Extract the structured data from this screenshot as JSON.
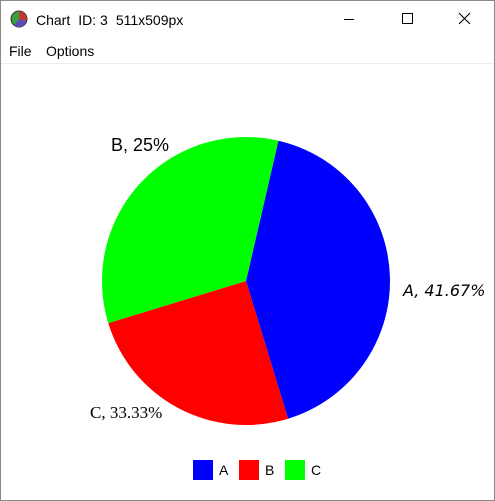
{
  "window": {
    "title": "Chart",
    "id_label": "ID: 3",
    "size_label": "511x509px",
    "icon": "pie-chart-icon",
    "controls": [
      "minimize-icon",
      "maximize-icon",
      "close-icon"
    ]
  },
  "menu": {
    "file": "File",
    "options": "Options"
  },
  "chart_data": {
    "type": "pie",
    "title": "",
    "slices": [
      {
        "name": "A",
        "value": 41.67,
        "label": "A, 41.67%",
        "color": "#0000ff"
      },
      {
        "name": "B",
        "value": 25,
        "label": "B, 25%",
        "color": "#ff0000"
      },
      {
        "name": "C",
        "value": 33.33,
        "label": "C, 33.33%",
        "color": "#00ff00"
      }
    ],
    "legend": {
      "placement": "bottom",
      "entries": [
        "A",
        "B",
        "C"
      ]
    },
    "start_angle_deg": 77,
    "direction": "clockwise"
  }
}
